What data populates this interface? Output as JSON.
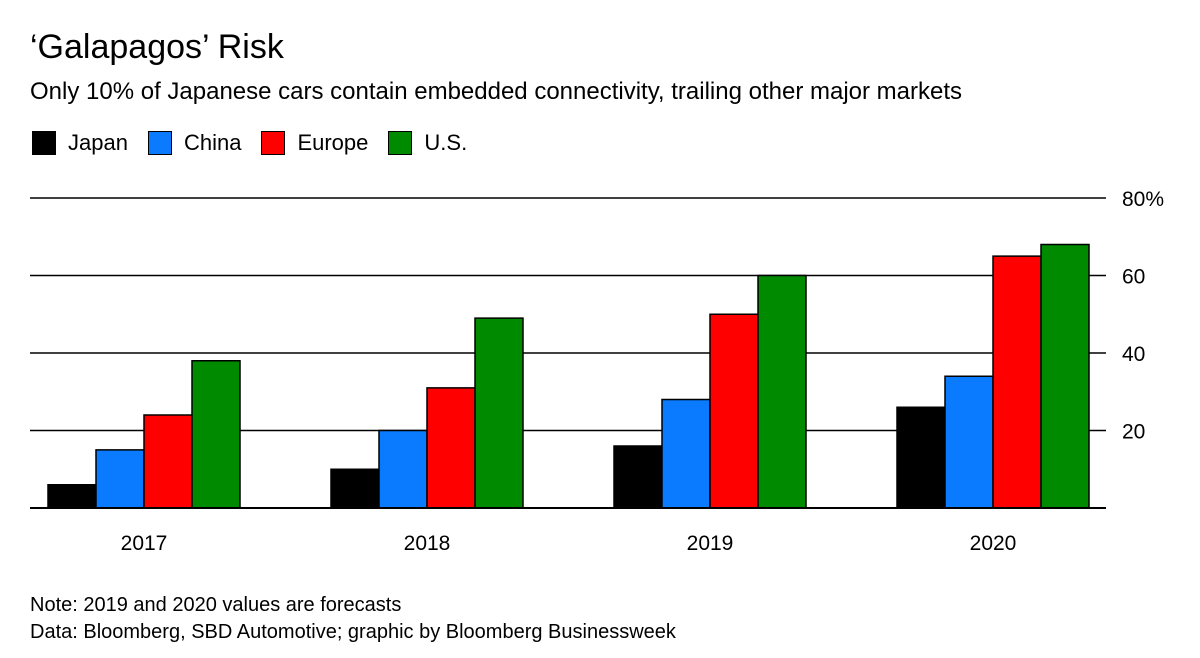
{
  "colors": {
    "japan": "#000000",
    "china": "#0a7bff",
    "europe": "#ff0000",
    "us": "#008a00"
  },
  "chart_data": {
    "type": "bar",
    "title": "‘Galapagos’ Risk",
    "subtitle": "Only 10% of Japanese cars contain embedded connectivity, trailing other major markets",
    "categories": [
      "2017",
      "2018",
      "2019",
      "2020"
    ],
    "series": [
      {
        "name": "Japan",
        "color": "#000000",
        "values": [
          6,
          10,
          16,
          26
        ]
      },
      {
        "name": "China",
        "color": "#0a7bff",
        "values": [
          15,
          20,
          28,
          34
        ]
      },
      {
        "name": "Europe",
        "color": "#ff0000",
        "values": [
          24,
          31,
          50,
          65
        ]
      },
      {
        "name": "U.S.",
        "color": "#008a00",
        "values": [
          38,
          49,
          60,
          68
        ]
      }
    ],
    "ylim": [
      0,
      80
    ],
    "yticks": [
      20,
      40,
      60,
      80
    ],
    "ytick_labels": [
      "20",
      "40",
      "60",
      "80%"
    ],
    "grid": true,
    "legend_position": "top-left",
    "xlabel": "",
    "ylabel": ""
  },
  "notes": {
    "note": "Note: 2019 and 2020 values are forecasts",
    "source": "Data: Bloomberg, SBD Automotive; graphic by Bloomberg Businessweek"
  }
}
